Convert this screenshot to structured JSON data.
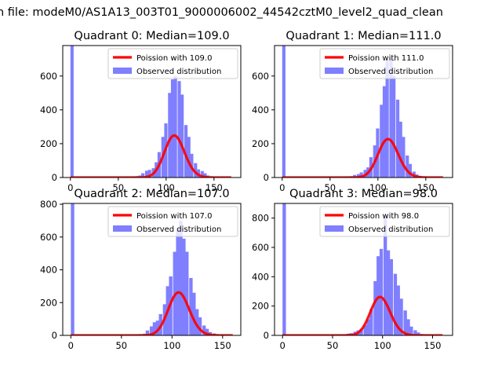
{
  "figure": {
    "suptitle": "n file: modeM0/AS1A13_003T01_9000006002_44542cztM0_level2_quad_clean",
    "observed_color": "#7f7fff",
    "poisson_color": "#ff0000"
  },
  "chart_data": [
    {
      "type": "bar",
      "title": "Quadrant 0: Median=109.0",
      "xlim": [
        -8,
        178
      ],
      "ylim": [
        0,
        780
      ],
      "xticks": [
        0,
        50,
        100,
        150
      ],
      "yticks": [
        0,
        200,
        400,
        600
      ],
      "legend": {
        "position": "top-right",
        "entries": [
          "Poission with 109.0",
          "Observed distribution"
        ]
      },
      "series": [
        {
          "name": "Observed distribution",
          "kind": "histogram",
          "bin_width": 3.4,
          "bins": [
            [
              0,
              780
            ],
            [
              57,
              2
            ],
            [
              61,
              3
            ],
            [
              64,
              5
            ],
            [
              68,
              8
            ],
            [
              71,
              12
            ],
            [
              74,
              25
            ],
            [
              78,
              40
            ],
            [
              81,
              45
            ],
            [
              85,
              55
            ],
            [
              88,
              90
            ],
            [
              91,
              150
            ],
            [
              95,
              240
            ],
            [
              98,
              320
            ],
            [
              102,
              500
            ],
            [
              105,
              580
            ],
            [
              108,
              600
            ],
            [
              112,
              570
            ],
            [
              115,
              490
            ],
            [
              119,
              310
            ],
            [
              122,
              240
            ],
            [
              125,
              140
            ],
            [
              129,
              85
            ],
            [
              132,
              48
            ],
            [
              136,
              38
            ],
            [
              139,
              25
            ],
            [
              142,
              12
            ],
            [
              146,
              6
            ],
            [
              149,
              3
            ]
          ]
        },
        {
          "name": "Poission with 109.0",
          "kind": "poisson",
          "mean": 109.0,
          "scale": 6500,
          "x_range": [
            0,
            168
          ]
        }
      ]
    },
    {
      "type": "bar",
      "title": "Quadrant 1: Median=111.0",
      "xlim": [
        -8,
        178
      ],
      "ylim": [
        0,
        780
      ],
      "xticks": [
        0,
        50,
        100,
        150
      ],
      "yticks": [
        0,
        200,
        400,
        600
      ],
      "legend": {
        "position": "top-right",
        "entries": [
          "Poission with 111.0",
          "Observed distribution"
        ]
      },
      "series": [
        {
          "name": "Observed distribution",
          "kind": "histogram",
          "bin_width": 3.4,
          "bins": [
            [
              0,
              780
            ],
            [
              60,
              2
            ],
            [
              64,
              4
            ],
            [
              67,
              6
            ],
            [
              71,
              8
            ],
            [
              74,
              15
            ],
            [
              78,
              20
            ],
            [
              81,
              30
            ],
            [
              85,
              45
            ],
            [
              88,
              60
            ],
            [
              91,
              120
            ],
            [
              95,
              190
            ],
            [
              98,
              290
            ],
            [
              102,
              430
            ],
            [
              105,
              540
            ],
            [
              108,
              690
            ],
            [
              112,
              710
            ],
            [
              115,
              600
            ],
            [
              119,
              460
            ],
            [
              122,
              330
            ],
            [
              125,
              240
            ],
            [
              129,
              130
            ],
            [
              132,
              80
            ],
            [
              136,
              35
            ],
            [
              139,
              18
            ],
            [
              142,
              10
            ],
            [
              146,
              5
            ],
            [
              149,
              2
            ]
          ]
        },
        {
          "name": "Poission with 111.0",
          "kind": "poisson",
          "mean": 111.0,
          "scale": 6000,
          "x_range": [
            0,
            168
          ]
        }
      ]
    },
    {
      "type": "bar",
      "title": "Quadrant 2: Median=107.0",
      "xlim": [
        -8,
        168
      ],
      "ylim": [
        0,
        805
      ],
      "xticks": [
        0,
        50,
        100,
        150
      ],
      "yticks": [
        0,
        200,
        400,
        600,
        800
      ],
      "legend": {
        "position": "top-right",
        "entries": [
          "Poission with 107.0",
          "Observed distribution"
        ]
      },
      "series": [
        {
          "name": "Observed distribution",
          "kind": "histogram",
          "bin_width": 3.4,
          "bins": [
            [
              0,
              805
            ],
            [
              64,
              3
            ],
            [
              67,
              8
            ],
            [
              71,
              10
            ],
            [
              74,
              30
            ],
            [
              78,
              55
            ],
            [
              81,
              80
            ],
            [
              84,
              90
            ],
            [
              87,
              130
            ],
            [
              91,
              190
            ],
            [
              94,
              300
            ],
            [
              97,
              360
            ],
            [
              101,
              510
            ],
            [
              104,
              650
            ],
            [
              107,
              700
            ],
            [
              110,
              590
            ],
            [
              113,
              510
            ],
            [
              117,
              350
            ],
            [
              120,
              260
            ],
            [
              123,
              160
            ],
            [
              126,
              110
            ],
            [
              130,
              60
            ],
            [
              133,
              40
            ],
            [
              136,
              20
            ],
            [
              140,
              12
            ],
            [
              143,
              6
            ]
          ]
        },
        {
          "name": "Poission with 107.0",
          "kind": "poisson",
          "mean": 107.0,
          "scale": 6800,
          "x_range": [
            0,
            160
          ]
        }
      ]
    },
    {
      "type": "bar",
      "title": "Quadrant 3: Median=98.0",
      "xlim": [
        -8,
        170
      ],
      "ylim": [
        0,
        900
      ],
      "xticks": [
        0,
        50,
        100,
        150
      ],
      "yticks": [
        0,
        200,
        400,
        600,
        800
      ],
      "legend": {
        "position": "top-right",
        "entries": [
          "Poission with 98.0",
          "Observed distribution"
        ]
      },
      "series": [
        {
          "name": "Observed distribution",
          "kind": "histogram",
          "bin_width": 3.4,
          "bins": [
            [
              0,
              900
            ],
            [
              50,
              3
            ],
            [
              57,
              5
            ],
            [
              61,
              8
            ],
            [
              64,
              12
            ],
            [
              67,
              15
            ],
            [
              71,
              25
            ],
            [
              74,
              35
            ],
            [
              77,
              45
            ],
            [
              81,
              70
            ],
            [
              84,
              110
            ],
            [
              87,
              180
            ],
            [
              91,
              370
            ],
            [
              94,
              540
            ],
            [
              97,
              590
            ],
            [
              101,
              820
            ],
            [
              104,
              580
            ],
            [
              107,
              520
            ],
            [
              111,
              420
            ],
            [
              114,
              340
            ],
            [
              117,
              250
            ],
            [
              121,
              170
            ],
            [
              124,
              110
            ],
            [
              127,
              60
            ],
            [
              131,
              35
            ],
            [
              134,
              20
            ],
            [
              137,
              10
            ],
            [
              141,
              5
            ]
          ]
        },
        {
          "name": "Poission with 98.0",
          "kind": "poisson",
          "mean": 98.0,
          "scale": 6500,
          "x_range": [
            0,
            160
          ]
        }
      ]
    }
  ]
}
